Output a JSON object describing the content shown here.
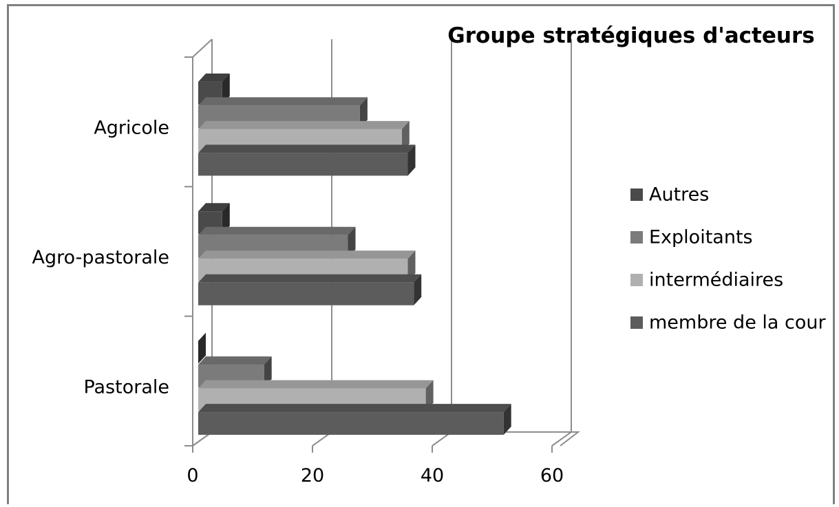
{
  "chart_data": {
    "type": "bar",
    "orientation": "horizontal",
    "style": "3d-clustered",
    "title": "Groupe stratégiques d'acteurs",
    "categories": [
      "Agricole",
      "Agro-pastorale",
      "Pastorale"
    ],
    "series": [
      {
        "name": "Autres",
        "values": [
          4,
          4,
          0
        ],
        "color": "#4a4a4a"
      },
      {
        "name": "Exploitants",
        "values": [
          27,
          25,
          11
        ],
        "color": "#7b7b7b"
      },
      {
        "name": "intermédiaires",
        "values": [
          34,
          35,
          38
        ],
        "color": "#b0b0b0"
      },
      {
        "name": "membre de la cour",
        "values": [
          35,
          36,
          51
        ],
        "color": "#5c5c5c"
      }
    ],
    "x_ticks": [
      "0",
      "20",
      "40",
      "60"
    ],
    "xlim": [
      0,
      60
    ],
    "grid": true,
    "legend_position": "right"
  }
}
